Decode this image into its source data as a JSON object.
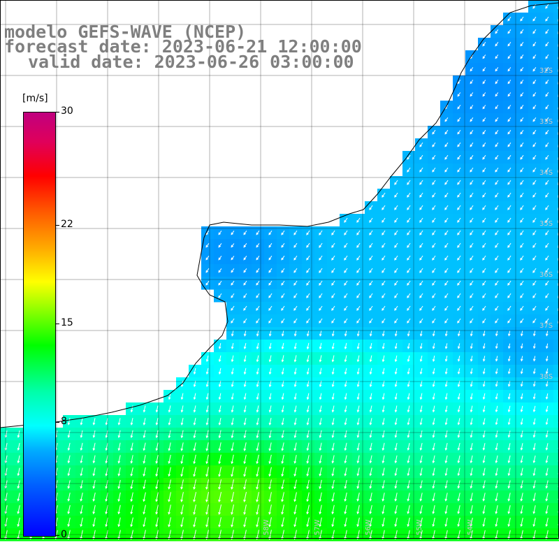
{
  "title": {
    "line1": "modelo GEFS-WAVE (NCEP)",
    "line2": "forecast date: 2023-06-21 12:00:00",
    "line3": "valid date: 2023-06-26 03:00:00"
  },
  "colorbar": {
    "unit": "[m/s]",
    "ticks": [
      {
        "value": 30,
        "label": "30"
      },
      {
        "value": 22,
        "label": "22"
      },
      {
        "value": 15,
        "label": "15"
      },
      {
        "value": 8,
        "label": "8"
      },
      {
        "value": 0,
        "label": "0"
      }
    ],
    "min": 0,
    "max": 30
  },
  "map": {
    "lat_labels": [
      "32S",
      "33S",
      "34S",
      "35S",
      "36S",
      "37S",
      "38S"
    ],
    "lon_labels": [
      "58W",
      "57W",
      "56W",
      "55W",
      "54W"
    ],
    "colors": {
      "land": "#ffffff",
      "grid": "#000000",
      "arrow": "#ffffff",
      "coast": "#000000"
    }
  }
}
